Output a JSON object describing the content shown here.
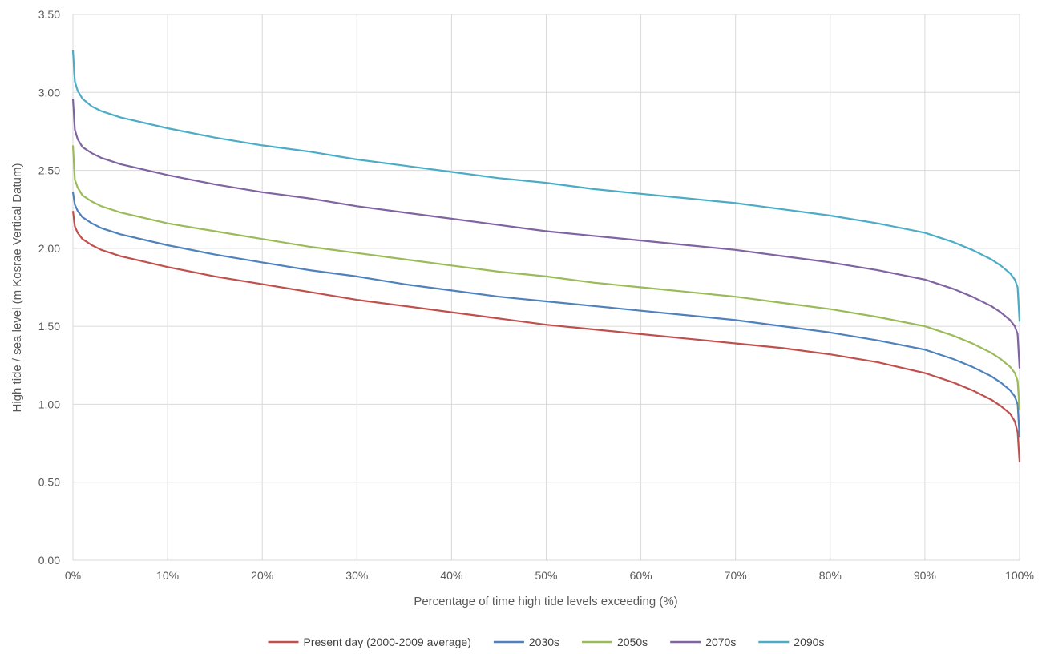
{
  "chart_data": {
    "type": "line",
    "title": "",
    "xlabel": "Percentage of time high tide levels exceeding (%)",
    "ylabel": "High tide / sea level (m Kosrae  Vertical Datum)",
    "xlim": [
      0,
      100
    ],
    "ylim": [
      0,
      3.5
    ],
    "x_ticks": [
      "0%",
      "10%",
      "20%",
      "30%",
      "40%",
      "50%",
      "60%",
      "70%",
      "80%",
      "90%",
      "100%"
    ],
    "y_ticks": [
      "0.00",
      "0.50",
      "1.00",
      "1.50",
      "2.00",
      "2.50",
      "3.00",
      "3.50"
    ],
    "grid": true,
    "legend_position": "bottom",
    "x": [
      0,
      0.2,
      0.5,
      1,
      2,
      3,
      5,
      10,
      15,
      20,
      25,
      30,
      35,
      40,
      45,
      50,
      55,
      60,
      65,
      70,
      75,
      80,
      85,
      90,
      93,
      95,
      97,
      98,
      99,
      99.5,
      99.8,
      100
    ],
    "series": [
      {
        "name": "Present day (2000-2009 average)",
        "color": "#c0504d",
        "values": [
          2.24,
          2.14,
          2.1,
          2.06,
          2.02,
          1.99,
          1.95,
          1.88,
          1.82,
          1.77,
          1.72,
          1.67,
          1.63,
          1.59,
          1.55,
          1.51,
          1.48,
          1.45,
          1.42,
          1.39,
          1.36,
          1.32,
          1.27,
          1.2,
          1.14,
          1.09,
          1.03,
          0.99,
          0.94,
          0.89,
          0.82,
          0.63
        ]
      },
      {
        "name": "2030s",
        "color": "#4f81bd",
        "values": [
          2.36,
          2.28,
          2.24,
          2.2,
          2.16,
          2.13,
          2.09,
          2.02,
          1.96,
          1.91,
          1.86,
          1.82,
          1.77,
          1.73,
          1.69,
          1.66,
          1.63,
          1.6,
          1.57,
          1.54,
          1.5,
          1.46,
          1.41,
          1.35,
          1.29,
          1.24,
          1.18,
          1.14,
          1.09,
          1.05,
          1.0,
          0.79
        ]
      },
      {
        "name": "2050s",
        "color": "#9bbb59",
        "values": [
          2.66,
          2.44,
          2.39,
          2.34,
          2.3,
          2.27,
          2.23,
          2.16,
          2.11,
          2.06,
          2.01,
          1.97,
          1.93,
          1.89,
          1.85,
          1.82,
          1.78,
          1.75,
          1.72,
          1.69,
          1.65,
          1.61,
          1.56,
          1.5,
          1.44,
          1.39,
          1.33,
          1.29,
          1.24,
          1.2,
          1.15,
          0.96
        ]
      },
      {
        "name": "2070s",
        "color": "#8064a2",
        "values": [
          2.96,
          2.76,
          2.7,
          2.65,
          2.61,
          2.58,
          2.54,
          2.47,
          2.41,
          2.36,
          2.32,
          2.27,
          2.23,
          2.19,
          2.15,
          2.11,
          2.08,
          2.05,
          2.02,
          1.99,
          1.95,
          1.91,
          1.86,
          1.8,
          1.74,
          1.69,
          1.63,
          1.59,
          1.54,
          1.5,
          1.45,
          1.23
        ]
      },
      {
        "name": "2090s",
        "color": "#4bacc6",
        "values": [
          3.27,
          3.07,
          3.01,
          2.96,
          2.91,
          2.88,
          2.84,
          2.77,
          2.71,
          2.66,
          2.62,
          2.57,
          2.53,
          2.49,
          2.45,
          2.42,
          2.38,
          2.35,
          2.32,
          2.29,
          2.25,
          2.21,
          2.16,
          2.1,
          2.04,
          1.99,
          1.93,
          1.89,
          1.84,
          1.8,
          1.75,
          1.53
        ]
      }
    ]
  }
}
